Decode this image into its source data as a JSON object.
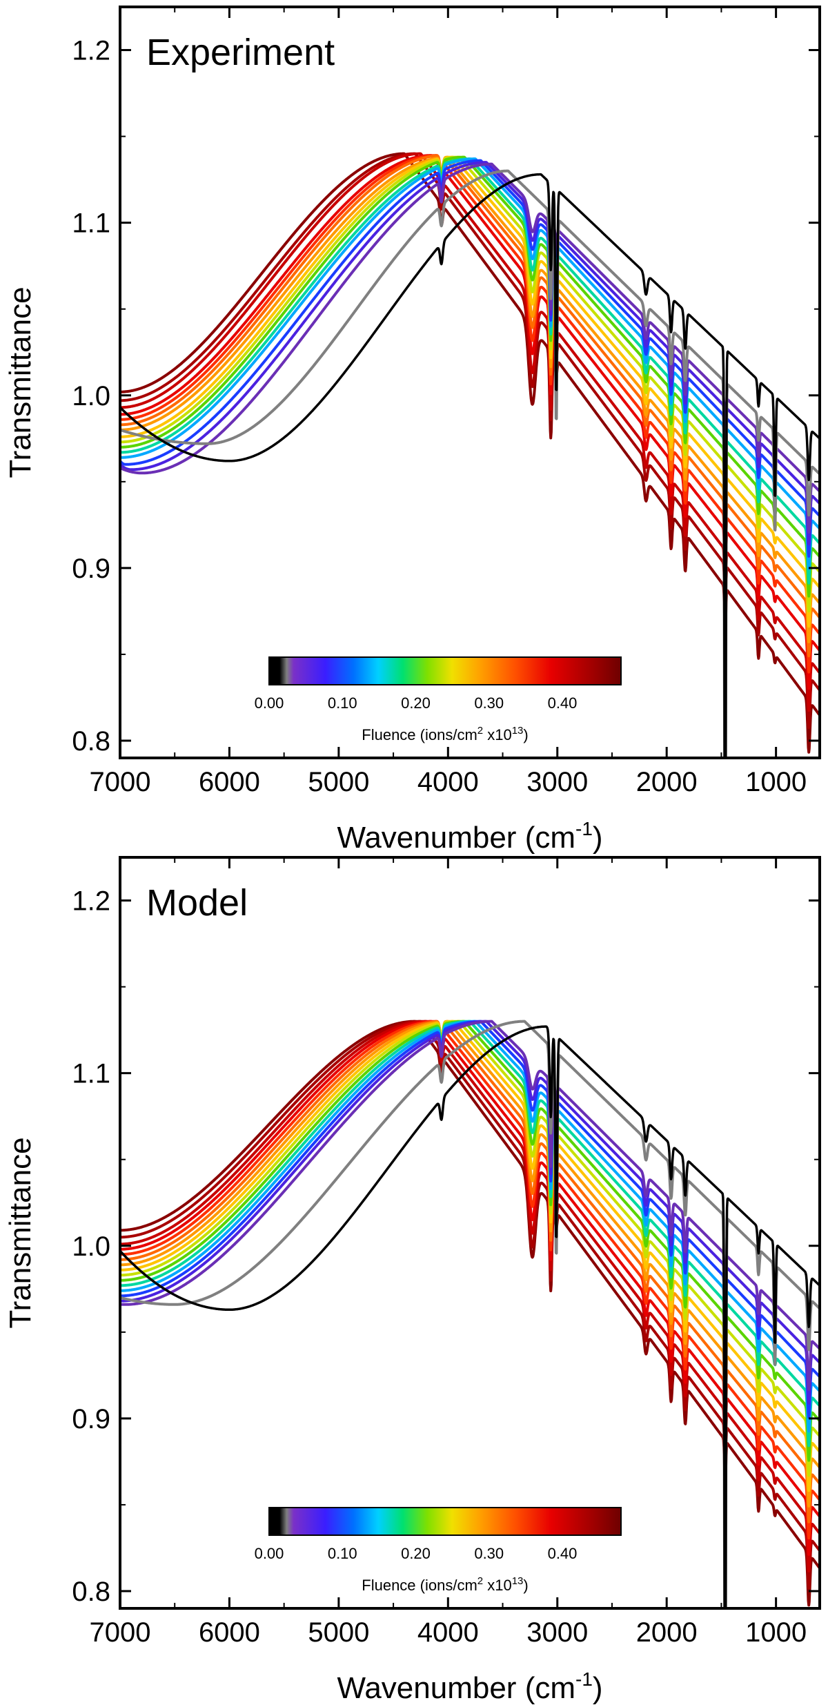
{
  "chart_data": [
    {
      "type": "line",
      "title": "Experiment",
      "xlabel": "Wavenumber (cm-1)",
      "xlabel_main": "Wavenumber (cm",
      "xlabel_sup": "-1",
      "xlabel_close": ")",
      "ylabel": "Transmittance",
      "xlim": [
        7000,
        600
      ],
      "ylim": [
        0.79,
        1.225
      ],
      "x_ticks": [
        7000,
        6000,
        5000,
        4000,
        3000,
        2000,
        1000
      ],
      "x_tick_labels": [
        "7000",
        "6000",
        "5000",
        "4000",
        "3000",
        "2000",
        "1000"
      ],
      "y_ticks": [
        0.8,
        0.9,
        1.0,
        1.1,
        1.2
      ],
      "y_tick_labels": [
        "0.8",
        "0.9",
        "1.0",
        "1.1",
        "1.2"
      ],
      "colorbar": {
        "label": "Fluence (ions/cm2 x1013)",
        "label_part1": "Fluence (ions/cm",
        "label_sup1": "2",
        "label_part2": " x10",
        "label_sup2": "13",
        "label_part3": ")",
        "range": [
          0,
          0.48
        ],
        "ticks": [
          "0.00",
          "0.10",
          "0.20",
          "0.30",
          "0.40"
        ],
        "tick_values": [
          0.0,
          0.1,
          0.2,
          0.3,
          0.4
        ]
      },
      "series": [
        {
          "name": "unirradiated (fluence 0.00)",
          "color": "#000000",
          "min_x": 6000,
          "min_y": 0.962,
          "peak_x": 3150,
          "peak_y": 1.128,
          "start_y": 0.993
        },
        {
          "name": "fluence 0.02",
          "color": "#808080",
          "min_x": 6200,
          "min_y": 0.972,
          "peak_x": 3450,
          "peak_y": 1.13,
          "start_y": 0.98
        },
        {
          "name": "fluence 0.04",
          "color": "#6a2fb5",
          "min_x": 6800,
          "min_y": 0.955,
          "peak_x": 3600,
          "peak_y": 1.134,
          "start_y": 0.958
        },
        {
          "name": "fluence 0.07",
          "color": "#4b22e0",
          "min_x": 6900,
          "min_y": 0.957,
          "peak_x": 3650,
          "peak_y": 1.135,
          "start_y": 0.96
        },
        {
          "name": "fluence 0.10",
          "color": "#1a3cff",
          "min_x": 6950,
          "min_y": 0.96,
          "peak_x": 3700,
          "peak_y": 1.136,
          "start_y": 0.962
        },
        {
          "name": "fluence 0.13",
          "color": "#00a8ff",
          "min_x": 7000,
          "min_y": 0.964,
          "peak_x": 3750,
          "peak_y": 1.137,
          "start_y": 0.964
        },
        {
          "name": "fluence 0.16",
          "color": "#00d8a0",
          "min_x": 7000,
          "min_y": 0.967,
          "peak_x": 3800,
          "peak_y": 1.137,
          "start_y": 0.967
        },
        {
          "name": "fluence 0.19",
          "color": "#5ad400",
          "min_x": 7000,
          "min_y": 0.97,
          "peak_x": 3850,
          "peak_y": 1.138,
          "start_y": 0.97
        },
        {
          "name": "fluence 0.22",
          "color": "#c8e000",
          "min_x": 7000,
          "min_y": 0.973,
          "peak_x": 3900,
          "peak_y": 1.138,
          "start_y": 0.973
        },
        {
          "name": "fluence 0.25",
          "color": "#ffc400",
          "min_x": 7000,
          "min_y": 0.976,
          "peak_x": 3950,
          "peak_y": 1.138,
          "start_y": 0.976
        },
        {
          "name": "fluence 0.28",
          "color": "#ff9a00",
          "min_x": 7000,
          "min_y": 0.98,
          "peak_x": 4000,
          "peak_y": 1.138,
          "start_y": 0.98
        },
        {
          "name": "fluence 0.31",
          "color": "#ff6a00",
          "min_x": 7000,
          "min_y": 0.983,
          "peak_x": 4050,
          "peak_y": 1.139,
          "start_y": 0.983
        },
        {
          "name": "fluence 0.34",
          "color": "#ff3000",
          "min_x": 7000,
          "min_y": 0.986,
          "peak_x": 4100,
          "peak_y": 1.139,
          "start_y": 0.986
        },
        {
          "name": "fluence 0.37",
          "color": "#e80000",
          "min_x": 7000,
          "min_y": 0.989,
          "peak_x": 4150,
          "peak_y": 1.139,
          "start_y": 0.989
        },
        {
          "name": "fluence 0.40",
          "color": "#c80000",
          "min_x": 7000,
          "min_y": 0.993,
          "peak_x": 4250,
          "peak_y": 1.14,
          "start_y": 0.993
        },
        {
          "name": "fluence 0.44",
          "color": "#a80000",
          "min_x": 7000,
          "min_y": 0.997,
          "peak_x": 4300,
          "peak_y": 1.14,
          "start_y": 0.997
        },
        {
          "name": "fluence 0.47",
          "color": "#8a0000",
          "min_x": 7000,
          "min_y": 1.002,
          "peak_x": 4400,
          "peak_y": 1.14,
          "start_y": 1.002
        }
      ]
    },
    {
      "type": "line",
      "title": "Model",
      "xlabel": "Wavenumber (cm-1)",
      "xlabel_main": "Wavenumber (cm",
      "xlabel_sup": "-1",
      "xlabel_close": ")",
      "ylabel": "Transmittance",
      "xlim": [
        7000,
        600
      ],
      "ylim": [
        0.79,
        1.225
      ],
      "x_ticks": [
        7000,
        6000,
        5000,
        4000,
        3000,
        2000,
        1000
      ],
      "x_tick_labels": [
        "7000",
        "6000",
        "5000",
        "4000",
        "3000",
        "2000",
        "1000"
      ],
      "y_ticks": [
        0.8,
        0.9,
        1.0,
        1.1,
        1.2
      ],
      "y_tick_labels": [
        "0.8",
        "0.9",
        "1.0",
        "1.1",
        "1.2"
      ],
      "colorbar": {
        "label": "Fluence (ions/cm2 x1013)",
        "label_part1": "Fluence (ions/cm",
        "label_sup1": "2",
        "label_part2": " x10",
        "label_sup2": "13",
        "label_part3": ")",
        "range": [
          0,
          0.48
        ],
        "ticks": [
          "0.00",
          "0.10",
          "0.20",
          "0.30",
          "0.40"
        ],
        "tick_values": [
          0.0,
          0.1,
          0.2,
          0.3,
          0.4
        ]
      },
      "series": [
        {
          "name": "unirradiated (fluence 0.00)",
          "color": "#000000",
          "min_x": 6000,
          "min_y": 0.963,
          "peak_x": 3100,
          "peak_y": 1.127,
          "start_y": 0.997
        },
        {
          "name": "fluence 0.02",
          "color": "#808080",
          "min_x": 6500,
          "min_y": 0.966,
          "peak_x": 3300,
          "peak_y": 1.13,
          "start_y": 0.97
        },
        {
          "name": "fluence 0.04",
          "color": "#6a2fb5",
          "min_x": 6950,
          "min_y": 0.966,
          "peak_x": 3600,
          "peak_y": 1.13,
          "start_y": 0.966
        },
        {
          "name": "fluence 0.07",
          "color": "#4b22e0",
          "min_x": 7000,
          "min_y": 0.968,
          "peak_x": 3650,
          "peak_y": 1.13,
          "start_y": 0.968
        },
        {
          "name": "fluence 0.10",
          "color": "#1a3cff",
          "min_x": 7000,
          "min_y": 0.971,
          "peak_x": 3700,
          "peak_y": 1.13,
          "start_y": 0.971
        },
        {
          "name": "fluence 0.13",
          "color": "#00a8ff",
          "min_x": 7000,
          "min_y": 0.974,
          "peak_x": 3750,
          "peak_y": 1.13,
          "start_y": 0.974
        },
        {
          "name": "fluence 0.16",
          "color": "#00d8a0",
          "min_x": 7000,
          "min_y": 0.977,
          "peak_x": 3800,
          "peak_y": 1.13,
          "start_y": 0.977
        },
        {
          "name": "fluence 0.19",
          "color": "#5ad400",
          "min_x": 7000,
          "min_y": 0.98,
          "peak_x": 3850,
          "peak_y": 1.13,
          "start_y": 0.98
        },
        {
          "name": "fluence 0.22",
          "color": "#c8e000",
          "min_x": 7000,
          "min_y": 0.983,
          "peak_x": 3900,
          "peak_y": 1.13,
          "start_y": 0.983
        },
        {
          "name": "fluence 0.25",
          "color": "#ffc400",
          "min_x": 7000,
          "min_y": 0.986,
          "peak_x": 3950,
          "peak_y": 1.13,
          "start_y": 0.986
        },
        {
          "name": "fluence 0.28",
          "color": "#ff9a00",
          "min_x": 7000,
          "min_y": 0.989,
          "peak_x": 4000,
          "peak_y": 1.13,
          "start_y": 0.989
        },
        {
          "name": "fluence 0.31",
          "color": "#ff6a00",
          "min_x": 7000,
          "min_y": 0.992,
          "peak_x": 4050,
          "peak_y": 1.13,
          "start_y": 0.992
        },
        {
          "name": "fluence 0.34",
          "color": "#ff3000",
          "min_x": 7000,
          "min_y": 0.995,
          "peak_x": 4100,
          "peak_y": 1.13,
          "start_y": 0.995
        },
        {
          "name": "fluence 0.37",
          "color": "#e80000",
          "min_x": 7000,
          "min_y": 0.998,
          "peak_x": 4150,
          "peak_y": 1.13,
          "start_y": 0.998
        },
        {
          "name": "fluence 0.40",
          "color": "#c80000",
          "min_x": 7000,
          "min_y": 1.001,
          "peak_x": 4200,
          "peak_y": 1.13,
          "start_y": 1.001
        },
        {
          "name": "fluence 0.44",
          "color": "#a80000",
          "min_x": 7000,
          "min_y": 1.005,
          "peak_x": 4250,
          "peak_y": 1.13,
          "start_y": 1.005
        },
        {
          "name": "fluence 0.47",
          "color": "#8a0000",
          "min_x": 7000,
          "min_y": 1.009,
          "peak_x": 4300,
          "peak_y": 1.13,
          "start_y": 1.009
        }
      ]
    }
  ]
}
